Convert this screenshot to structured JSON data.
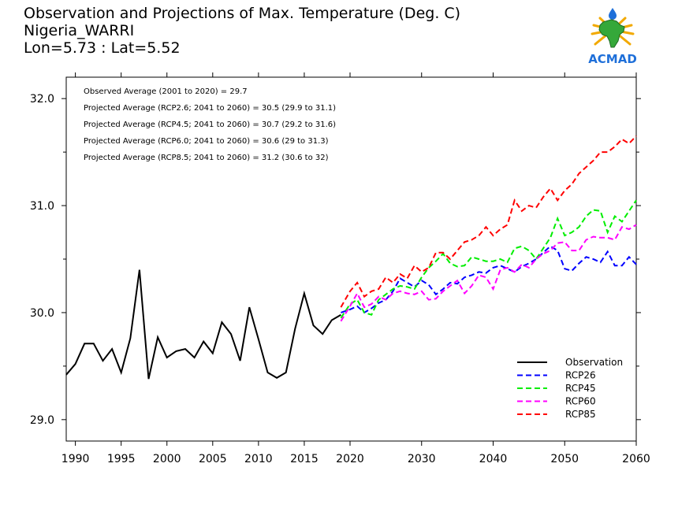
{
  "header": {
    "title": "Observation and Projections of Max. Temperature (Deg. C)",
    "location": "Nigeria_WARRI",
    "coords": "Lon=5.73 : Lat=5.52"
  },
  "logo": {
    "text": "ACMAD",
    "icon": "africa-map-logo"
  },
  "chart_data": {
    "type": "line",
    "xlim": [
      1989,
      2060
    ],
    "ylim": [
      28.8,
      32.2
    ],
    "grid": false,
    "legend_position": "bottom-right",
    "x_tick_labels": [
      "1990",
      "1995",
      "2000",
      "2005",
      "2010",
      "2015",
      "2020",
      "2030",
      "2040",
      "2050",
      "2060"
    ],
    "y_tick_labels": [
      "29.0",
      "30.0",
      "31.0",
      "32.0"
    ],
    "annotations": [
      "Observed Average (2001 to 2020) = 29.7",
      "Projected Average (RCP2.6; 2041 to 2060) = 30.5 (29.9 to 31.1)",
      "Projected Average (RCP4.5; 2041 to 2060) = 30.7 (29.2 to 31.6)",
      "Projected Average (RCP6.0; 2041 to 2060) = 30.6 (29 to 31.3)",
      "Projected Average (RCP8.5; 2041 to 2060) = 31.2 (30.6 to 32)"
    ],
    "series": [
      {
        "name": "Observation",
        "color": "#000000",
        "dash": "solid",
        "x": [
          1989,
          1990,
          1991,
          1992,
          1993,
          1994,
          1995,
          1996,
          1997,
          1998,
          1999,
          2000,
          2001,
          2002,
          2003,
          2004,
          2005,
          2006,
          2007,
          2008,
          2009,
          2010,
          2011,
          2012,
          2013,
          2014,
          2015,
          2016,
          2017,
          2018,
          2019
        ],
        "y": [
          29.42,
          29.52,
          29.71,
          29.71,
          29.55,
          29.66,
          29.44,
          29.76,
          30.4,
          29.38,
          29.77,
          29.58,
          29.64,
          29.66,
          29.58,
          29.73,
          29.62,
          29.91,
          29.8,
          29.55,
          30.05,
          29.75,
          29.44,
          29.39,
          29.44,
          29.85,
          30.18,
          29.88,
          29.8,
          29.93,
          29.98
        ]
      },
      {
        "name": "RCP26",
        "color": "#0000ff",
        "dash": "dashed",
        "x": [
          2019,
          2020,
          2021,
          2022,
          2023,
          2024,
          2025,
          2026,
          2027,
          2028,
          2029,
          2030,
          2031,
          2032,
          2033,
          2034,
          2035,
          2036,
          2037,
          2038,
          2039,
          2040,
          2041,
          2042,
          2043,
          2044,
          2045,
          2046,
          2047,
          2048,
          2049,
          2050,
          2051,
          2052,
          2053,
          2054,
          2055,
          2056,
          2057,
          2058,
          2059,
          2060
        ],
        "y": [
          30.0,
          30.03,
          30.06,
          30.0,
          30.04,
          30.09,
          30.12,
          30.2,
          30.32,
          30.28,
          30.24,
          30.3,
          30.26,
          30.17,
          30.22,
          30.28,
          30.27,
          30.33,
          30.35,
          30.38,
          30.37,
          30.42,
          30.44,
          30.41,
          30.38,
          30.43,
          30.46,
          30.5,
          30.56,
          30.62,
          30.58,
          30.41,
          30.39,
          30.46,
          30.52,
          30.5,
          30.47,
          30.57,
          30.44,
          30.44,
          30.52,
          30.45
        ]
      },
      {
        "name": "RCP45",
        "color": "#00ee00",
        "dash": "dashed",
        "x": [
          2019,
          2020,
          2021,
          2022,
          2023,
          2024,
          2025,
          2026,
          2027,
          2028,
          2029,
          2030,
          2031,
          2032,
          2033,
          2034,
          2035,
          2036,
          2037,
          2038,
          2039,
          2040,
          2041,
          2042,
          2043,
          2044,
          2045,
          2046,
          2047,
          2048,
          2049,
          2050,
          2051,
          2052,
          2053,
          2054,
          2055,
          2056,
          2057,
          2058,
          2059,
          2060
        ],
        "y": [
          29.95,
          30.08,
          30.12,
          30.0,
          29.98,
          30.12,
          30.17,
          30.22,
          30.25,
          30.24,
          30.22,
          30.33,
          30.42,
          30.48,
          30.55,
          30.46,
          30.43,
          30.44,
          30.52,
          30.5,
          30.48,
          30.48,
          30.5,
          30.47,
          30.6,
          30.62,
          30.58,
          30.5,
          30.6,
          30.7,
          30.88,
          30.72,
          30.75,
          30.8,
          30.9,
          30.96,
          30.95,
          30.75,
          30.9,
          30.85,
          30.95,
          31.05
        ]
      },
      {
        "name": "RCP60",
        "color": "#ff00ff",
        "dash": "dashed",
        "x": [
          2019,
          2020,
          2021,
          2022,
          2023,
          2024,
          2025,
          2026,
          2027,
          2028,
          2029,
          2030,
          2031,
          2032,
          2033,
          2034,
          2035,
          2036,
          2037,
          2038,
          2039,
          2040,
          2041,
          2042,
          2043,
          2044,
          2045,
          2046,
          2047,
          2048,
          2049,
          2050,
          2051,
          2052,
          2053,
          2054,
          2055,
          2056,
          2057,
          2058,
          2059,
          2060
        ],
        "y": [
          29.92,
          30.06,
          30.18,
          30.05,
          30.08,
          30.15,
          30.12,
          30.18,
          30.2,
          30.18,
          30.17,
          30.2,
          30.12,
          30.13,
          30.2,
          30.25,
          30.3,
          30.18,
          30.25,
          30.35,
          30.33,
          30.22,
          30.4,
          30.42,
          30.38,
          30.45,
          30.42,
          30.5,
          30.55,
          30.58,
          30.65,
          30.66,
          30.58,
          30.58,
          30.68,
          30.71,
          30.7,
          30.7,
          30.68,
          30.8,
          30.78,
          30.82
        ]
      },
      {
        "name": "RCP85",
        "color": "#ff0000",
        "dash": "dashed",
        "x": [
          2019,
          2020,
          2021,
          2022,
          2023,
          2024,
          2025,
          2026,
          2027,
          2028,
          2029,
          2030,
          2031,
          2032,
          2033,
          2034,
          2035,
          2036,
          2037,
          2038,
          2039,
          2040,
          2041,
          2042,
          2043,
          2044,
          2045,
          2046,
          2047,
          2048,
          2049,
          2050,
          2051,
          2052,
          2053,
          2054,
          2055,
          2056,
          2057,
          2058,
          2059,
          2060
        ],
        "y": [
          30.05,
          30.2,
          30.28,
          30.15,
          30.2,
          30.22,
          30.33,
          30.28,
          30.36,
          30.32,
          30.44,
          30.38,
          30.42,
          30.56,
          30.56,
          30.5,
          30.58,
          30.66,
          30.68,
          30.72,
          30.8,
          30.72,
          30.78,
          30.82,
          31.05,
          30.95,
          31.0,
          30.98,
          31.08,
          31.16,
          31.05,
          31.14,
          31.2,
          31.3,
          31.36,
          31.42,
          31.5,
          31.5,
          31.55,
          31.62,
          31.58,
          31.65
        ]
      }
    ]
  }
}
